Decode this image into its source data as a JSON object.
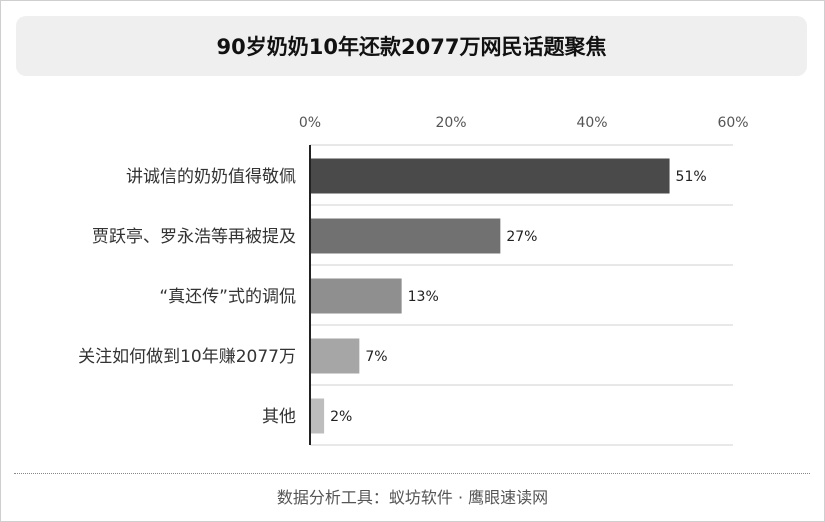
{
  "title": "90岁奶奶10年还款2077万网民话题聚焦",
  "footer": "数据分析工具：蚁坊软件 · 鹰眼速读网",
  "colors": {
    "background": "#ffffff",
    "title_bg": "#efefef",
    "grid": "#d0d0d0",
    "axis": "#222222"
  },
  "chart_data": {
    "type": "bar",
    "orientation": "horizontal",
    "categories": [
      "讲诚信的奶奶值得敬佩",
      "贾跃亭、罗永浩等再被提及",
      "“真还传”式的调侃",
      "关注如何做到10年赚2077万",
      "其他"
    ],
    "values": [
      51,
      27,
      13,
      7,
      2
    ],
    "value_labels": [
      "51%",
      "27%",
      "13%",
      "7%",
      "2%"
    ],
    "bar_colors": [
      "#4a4a4a",
      "#717171",
      "#8f8f8f",
      "#a6a6a6",
      "#bdbdbd"
    ],
    "xlim": [
      0,
      60
    ],
    "x_ticks": [
      0,
      20,
      40,
      60
    ],
    "x_tick_labels": [
      "0%",
      "20%",
      "40%",
      "60%"
    ],
    "x_axis_position": "top",
    "grid": true,
    "legend": "none"
  }
}
